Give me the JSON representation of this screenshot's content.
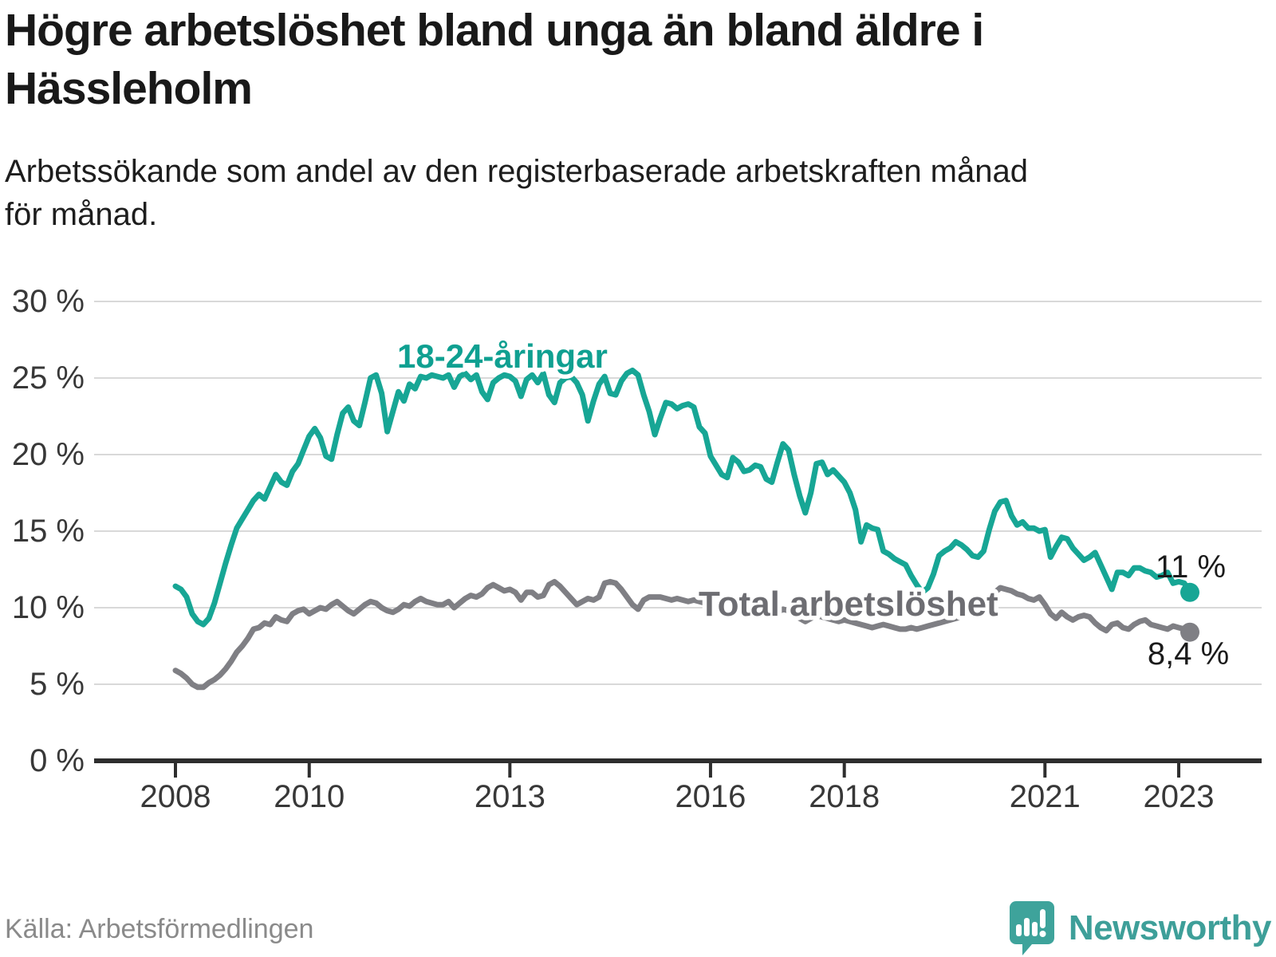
{
  "header": {
    "title_lines": [
      "Högre arbetslöshet bland unga än bland äldre i",
      "Hässleholm"
    ],
    "subtitle_lines": [
      "Arbetssökande som andel av den registerbaserade arbetskraften månad",
      "för månad."
    ]
  },
  "footer": {
    "source": "Källa: Arbetsförmedlingen",
    "brand": "Newsworthy",
    "brand_color": "#3e9f99"
  },
  "chart_data": {
    "type": "line",
    "title": "Högre arbetslöshet bland unga än bland äldre i Hässleholm",
    "subtitle": "Arbetssökande som andel av den registerbaserade arbetskraften månad för månad.",
    "x_unit": "month",
    "x_start": "2008-01",
    "x_end": "2023-03",
    "ylim": [
      0,
      30
    ],
    "grid": "horizontal",
    "gridline_color": "#d9d9d9",
    "axis_color": "#2e2e2e",
    "tick_label_color": "#383838",
    "y_ticks": [
      {
        "value": 0,
        "label": "0 %"
      },
      {
        "value": 5,
        "label": "5 %"
      },
      {
        "value": 10,
        "label": "10 %"
      },
      {
        "value": 15,
        "label": "15 %"
      },
      {
        "value": 20,
        "label": "20 %"
      },
      {
        "value": 25,
        "label": "25 %"
      },
      {
        "value": 30,
        "label": "30 %"
      }
    ],
    "x_ticks": [
      {
        "year": 2008,
        "label": "2008"
      },
      {
        "year": 2010,
        "label": "2010"
      },
      {
        "year": 2013,
        "label": "2013"
      },
      {
        "year": 2016,
        "label": "2016"
      },
      {
        "year": 2018,
        "label": "2018"
      },
      {
        "year": 2021,
        "label": "2021"
      },
      {
        "year": 2023,
        "label": "2023"
      }
    ],
    "series": [
      {
        "name": "18-24-åringar",
        "color": "#17a695",
        "label_color": "#0fa091",
        "end_label": "11 %",
        "end_value": 11.0,
        "values": [
          11.4,
          11.2,
          10.7,
          9.6,
          9.1,
          8.9,
          9.3,
          10.3,
          11.6,
          12.9,
          14.1,
          15.2,
          15.8,
          16.4,
          17.0,
          17.4,
          17.1,
          17.9,
          18.7,
          18.2,
          18.0,
          18.9,
          19.4,
          20.3,
          21.2,
          21.7,
          21.1,
          19.9,
          19.7,
          21.3,
          22.7,
          23.1,
          22.2,
          21.9,
          23.4,
          25.0,
          25.2,
          24.0,
          21.5,
          22.8,
          24.1,
          23.5,
          24.6,
          24.3,
          25.1,
          25.0,
          25.2,
          25.1,
          25.0,
          25.2,
          24.4,
          25.1,
          25.3,
          24.9,
          25.2,
          24.1,
          23.6,
          24.7,
          25.0,
          25.2,
          25.1,
          24.8,
          23.8,
          24.9,
          25.2,
          24.7,
          25.3,
          23.9,
          23.4,
          24.7,
          25.0,
          25.1,
          24.7,
          23.9,
          22.2,
          23.5,
          24.6,
          25.1,
          24.0,
          23.9,
          24.8,
          25.3,
          25.5,
          25.2,
          23.9,
          22.8,
          21.3,
          22.4,
          23.4,
          23.3,
          23.0,
          23.2,
          23.3,
          23.1,
          21.8,
          21.4,
          19.9,
          19.3,
          18.7,
          18.5,
          19.8,
          19.5,
          18.9,
          19.0,
          19.3,
          19.2,
          18.4,
          18.2,
          19.5,
          20.7,
          20.3,
          18.7,
          17.3,
          16.2,
          17.5,
          19.4,
          19.5,
          18.7,
          19.0,
          18.6,
          18.2,
          17.5,
          16.4,
          14.3,
          15.4,
          15.2,
          15.1,
          13.7,
          13.5,
          13.2,
          13.0,
          12.8,
          12.1,
          11.5,
          11.0,
          11.3,
          12.2,
          13.4,
          13.7,
          13.9,
          14.3,
          14.1,
          13.8,
          13.4,
          13.3,
          13.7,
          15.1,
          16.3,
          16.9,
          17.0,
          16.0,
          15.4,
          15.6,
          15.2,
          15.2,
          15.0,
          15.1,
          13.3,
          14.0,
          14.6,
          14.5,
          13.9,
          13.5,
          13.1,
          13.3,
          13.6,
          12.8,
          12.0,
          11.2,
          12.3,
          12.3,
          12.1,
          12.6,
          12.6,
          12.4,
          12.3,
          12.0,
          12.1,
          12.3,
          11.6,
          11.7,
          11.6,
          11.0
        ]
      },
      {
        "name": "Total arbetslöshet",
        "color": "#7f7f84",
        "label_color": "#6d6d72",
        "end_label": "8,4 %",
        "end_value": 8.4,
        "values": [
          5.9,
          5.7,
          5.4,
          5.0,
          4.8,
          4.8,
          5.1,
          5.3,
          5.6,
          6.0,
          6.5,
          7.1,
          7.5,
          8.0,
          8.6,
          8.7,
          9.0,
          8.9,
          9.4,
          9.2,
          9.1,
          9.6,
          9.8,
          9.9,
          9.6,
          9.8,
          10.0,
          9.9,
          10.2,
          10.4,
          10.1,
          9.8,
          9.6,
          9.9,
          10.2,
          10.4,
          10.3,
          10.0,
          9.8,
          9.7,
          9.9,
          10.2,
          10.1,
          10.4,
          10.6,
          10.4,
          10.3,
          10.2,
          10.2,
          10.4,
          10.0,
          10.3,
          10.6,
          10.8,
          10.7,
          10.9,
          11.3,
          11.5,
          11.3,
          11.1,
          11.2,
          11.0,
          10.5,
          11.0,
          11.0,
          10.7,
          10.8,
          11.5,
          11.7,
          11.4,
          11.0,
          10.6,
          10.2,
          10.4,
          10.6,
          10.5,
          10.7,
          11.6,
          11.7,
          11.6,
          11.2,
          10.7,
          10.2,
          9.9,
          10.5,
          10.7,
          10.7,
          10.7,
          10.6,
          10.5,
          10.6,
          10.5,
          10.4,
          10.5,
          10.4,
          10.3,
          10.4,
          10.3,
          10.2,
          10.0,
          10.1,
          10.2,
          10.0,
          9.9,
          9.8,
          9.7,
          9.6,
          9.5,
          9.7,
          9.9,
          9.8,
          9.5,
          9.3,
          9.1,
          9.3,
          9.5,
          9.4,
          9.3,
          9.2,
          9.1,
          9.2,
          9.1,
          9.0,
          8.9,
          8.8,
          8.7,
          8.8,
          8.9,
          8.8,
          8.7,
          8.6,
          8.6,
          8.7,
          8.6,
          8.7,
          8.8,
          8.9,
          9.0,
          9.1,
          9.2,
          9.3,
          9.4,
          9.5,
          9.6,
          9.7,
          9.8,
          10.4,
          11.0,
          11.3,
          11.2,
          11.1,
          10.9,
          10.8,
          10.6,
          10.5,
          10.7,
          10.2,
          9.6,
          9.3,
          9.7,
          9.4,
          9.2,
          9.4,
          9.5,
          9.4,
          9.0,
          8.7,
          8.5,
          8.9,
          9.0,
          8.7,
          8.6,
          8.9,
          9.1,
          9.2,
          8.9,
          8.8,
          8.7,
          8.6,
          8.8,
          8.7,
          8.6,
          8.4
        ]
      }
    ],
    "legend_position": "inline-labels"
  }
}
